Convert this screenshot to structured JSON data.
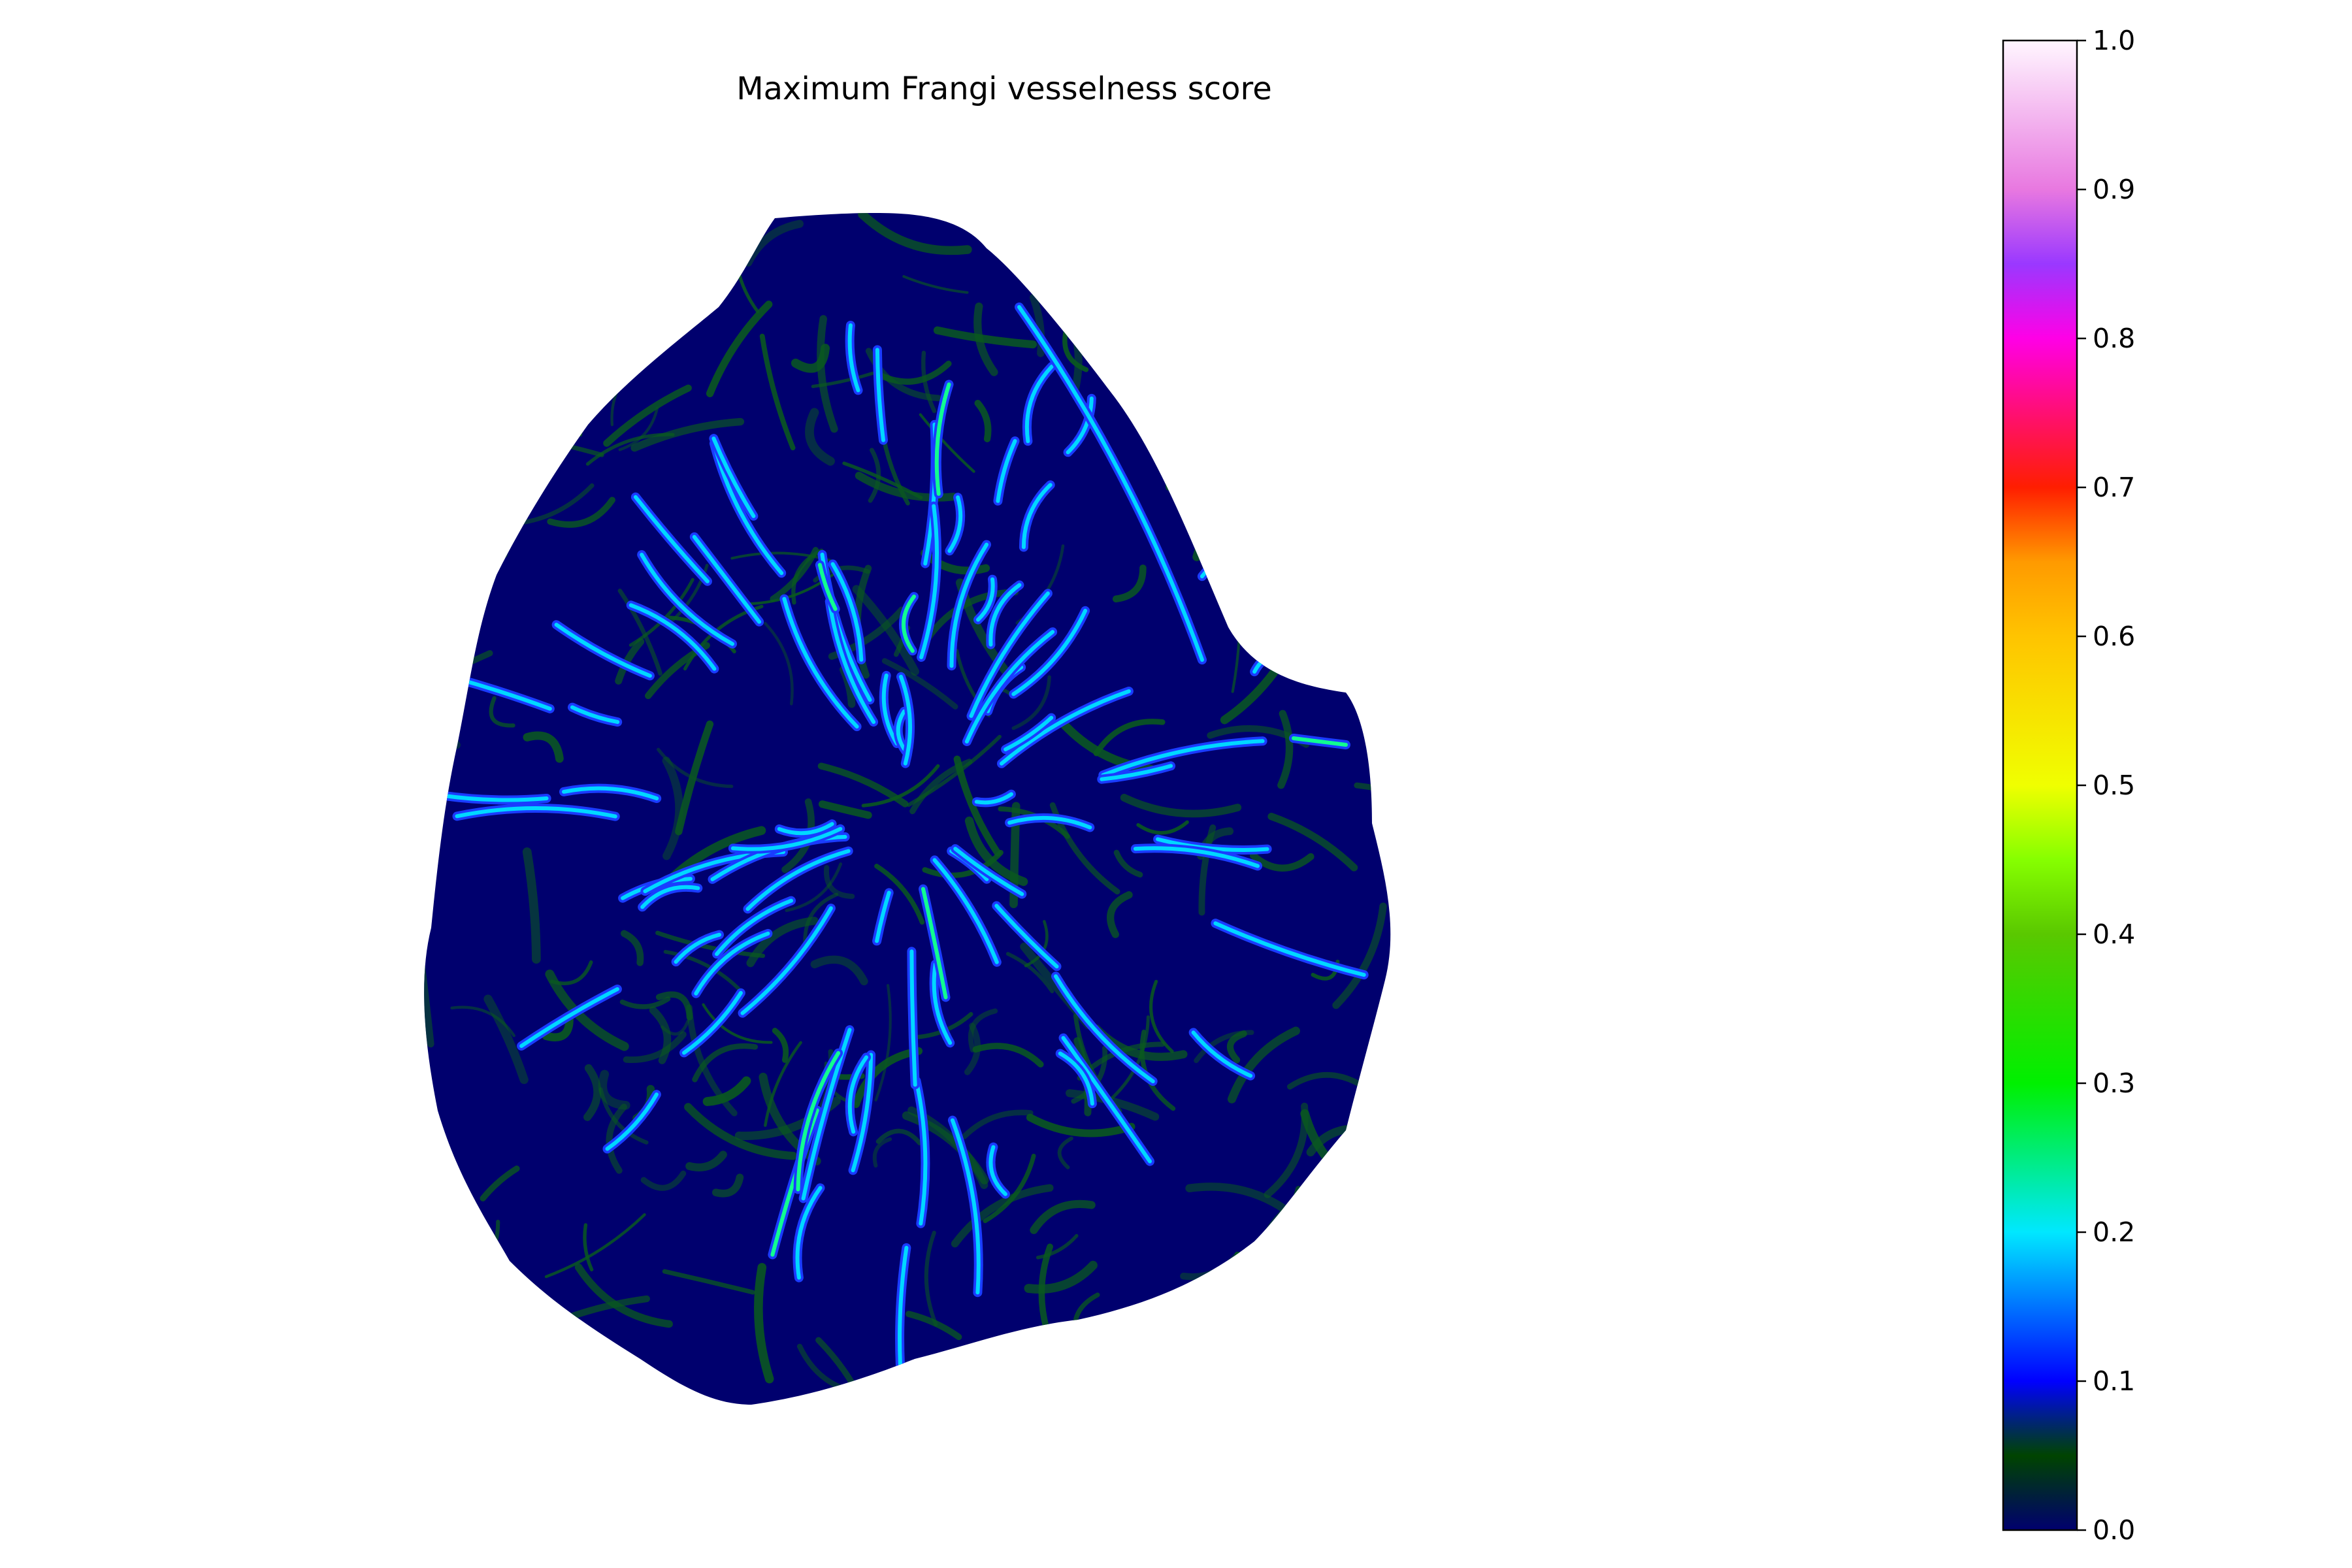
{
  "chart_data": {
    "type": "heatmap",
    "title": "Maximum Frangi vesselness score",
    "xlabel": "",
    "ylabel": "",
    "axes_visible": false,
    "grid": false,
    "colorbar": {
      "placement": "right",
      "range": [
        0.0,
        1.0
      ],
      "ticks": [
        0.0,
        0.1,
        0.2,
        0.3,
        0.4,
        0.5,
        0.6,
        0.7,
        0.8,
        0.9,
        1.0
      ],
      "tick_labels": [
        "0.0",
        "0.1",
        "0.2",
        "0.3",
        "0.4",
        "0.5",
        "0.6",
        "0.7",
        "0.8",
        "0.9",
        "1.0"
      ],
      "colormap_stops": [
        {
          "value": 0.0,
          "color": "#00006e"
        },
        {
          "value": 0.05,
          "color": "#004400"
        },
        {
          "value": 0.1,
          "color": "#0000ff"
        },
        {
          "value": 0.2,
          "color": "#00e8ff"
        },
        {
          "value": 0.3,
          "color": "#00f000"
        },
        {
          "value": 0.4,
          "color": "#5ac800"
        },
        {
          "value": 0.45,
          "color": "#86ff00"
        },
        {
          "value": 0.5,
          "color": "#f0ff00"
        },
        {
          "value": 0.6,
          "color": "#ffc400"
        },
        {
          "value": 0.65,
          "color": "#ff9a00"
        },
        {
          "value": 0.7,
          "color": "#ff1e00"
        },
        {
          "value": 0.8,
          "color": "#ff00e6"
        },
        {
          "value": 0.85,
          "color": "#9a38ff"
        },
        {
          "value": 0.9,
          "color": "#e878e0"
        },
        {
          "value": 1.0,
          "color": "#fff6ff"
        }
      ]
    },
    "colors": {
      "background": "#00006e",
      "texture": "#0a5a1e",
      "vessel_low": "#1a3cff",
      "vessel_mid": "#00d8ff",
      "vessel_high": "#10ff90"
    }
  }
}
